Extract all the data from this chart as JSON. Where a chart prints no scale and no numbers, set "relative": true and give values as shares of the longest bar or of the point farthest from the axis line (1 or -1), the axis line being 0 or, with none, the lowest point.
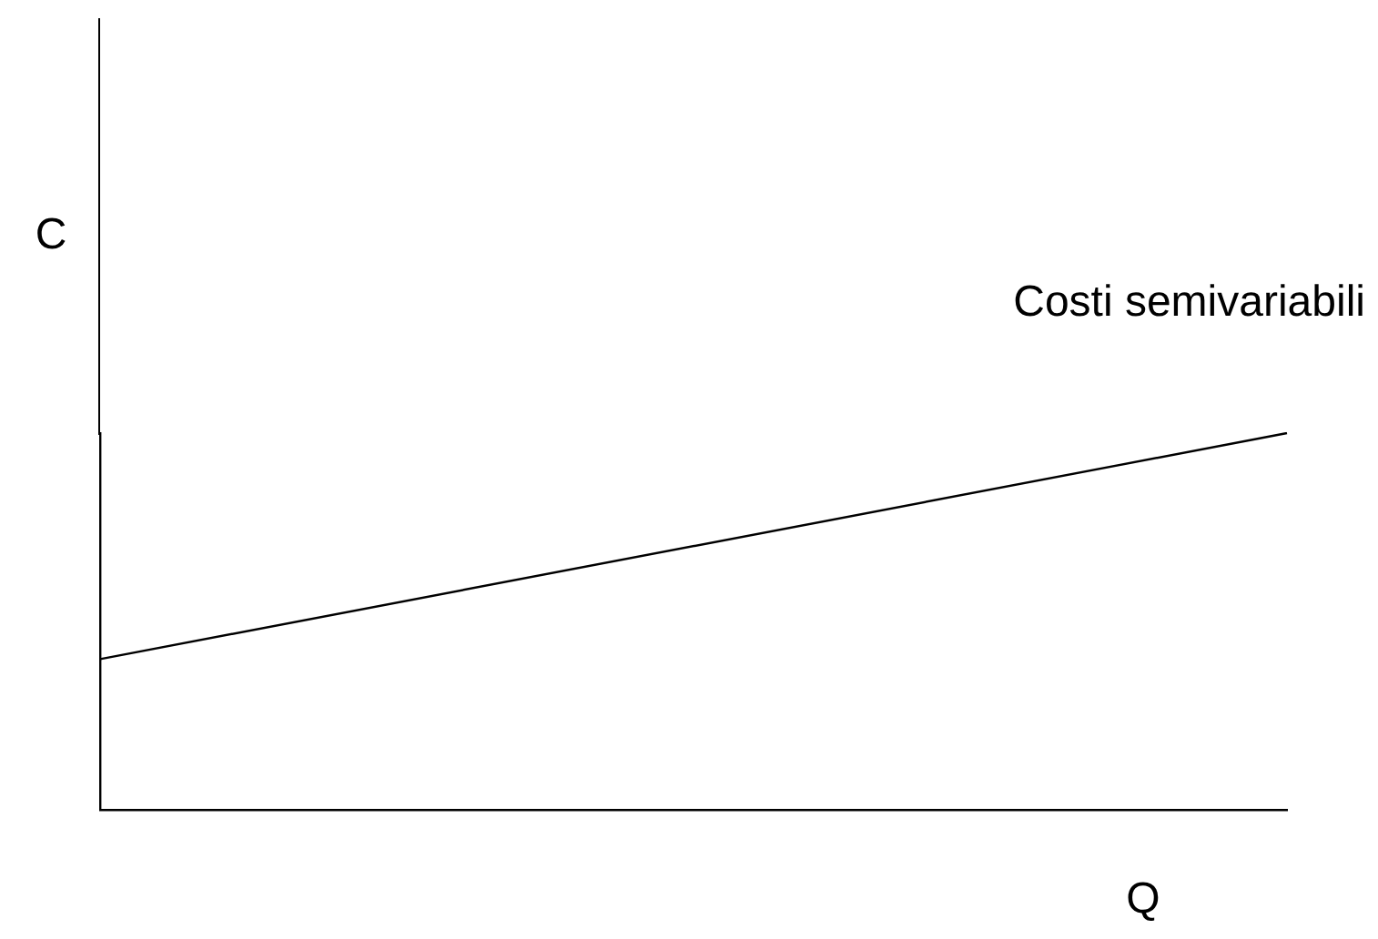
{
  "chart_data": {
    "type": "line",
    "relative": true,
    "ylabel": "C",
    "annotations": [
      "Q"
    ],
    "marker": "none",
    "legend": false,
    "grid": false,
    "categories": [
      null,
      null
    ],
    "series": [
      {
        "name": "Costi semivariabili",
        "color": "#000000",
        "values": [
          0.4,
          1
        ]
      }
    ]
  }
}
